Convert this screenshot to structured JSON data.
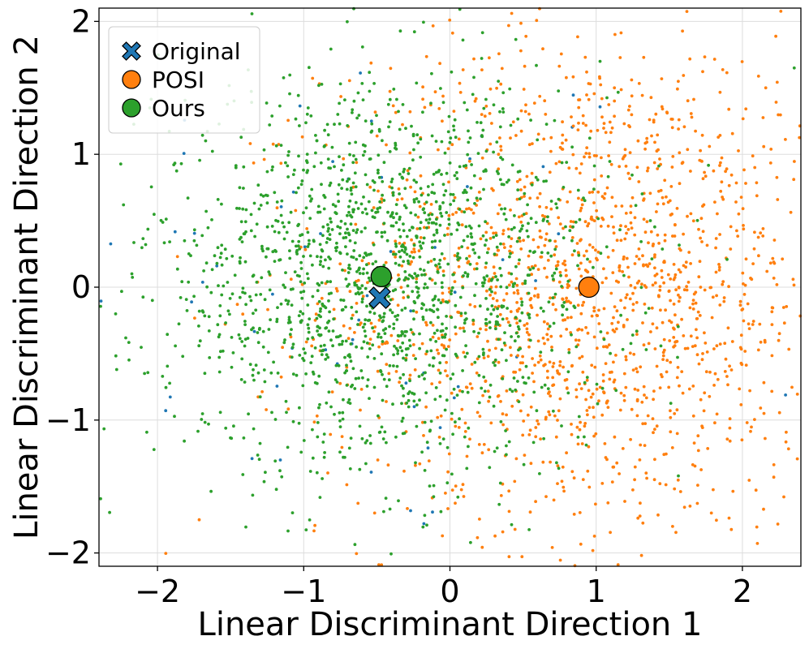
{
  "chart_data": {
    "type": "scatter",
    "xlabel": "Linear Discriminant Direction 1",
    "ylabel": "Linear Discriminant Direction 2",
    "xlim": [
      -2.4,
      2.4
    ],
    "ylim": [
      -2.1,
      2.1
    ],
    "xticks": [
      -2,
      -1,
      0,
      1,
      2
    ],
    "xtick_labels": [
      "−2",
      "−1",
      "0",
      "1",
      "2"
    ],
    "yticks": [
      -2,
      -1,
      0,
      1,
      2
    ],
    "ytick_labels": [
      "−2",
      "−1",
      "0",
      "1",
      "2"
    ],
    "grid": true,
    "legend_position": "top-left",
    "series": [
      {
        "name": "Original",
        "color": "#1f77b4",
        "marker": "x-filled",
        "point_count": 60,
        "center": [
          -0.48,
          -0.08
        ],
        "spread": [
          1.0,
          1.0
        ]
      },
      {
        "name": "POSI",
        "color": "#ff7f0e",
        "marker": "circle",
        "point_count": 1700,
        "center": [
          0.95,
          0.0
        ],
        "spread": [
          0.9,
          0.95
        ]
      },
      {
        "name": "Ours",
        "color": "#2ca02c",
        "marker": "circle",
        "point_count": 1700,
        "center": [
          -0.47,
          0.08
        ],
        "spread": [
          0.78,
          0.72
        ]
      }
    ],
    "centroids": [
      {
        "name": "Original",
        "x": -0.48,
        "y": -0.08
      },
      {
        "name": "POSI",
        "x": 0.95,
        "y": 0.0
      },
      {
        "name": "Ours",
        "x": -0.47,
        "y": 0.08
      }
    ]
  }
}
